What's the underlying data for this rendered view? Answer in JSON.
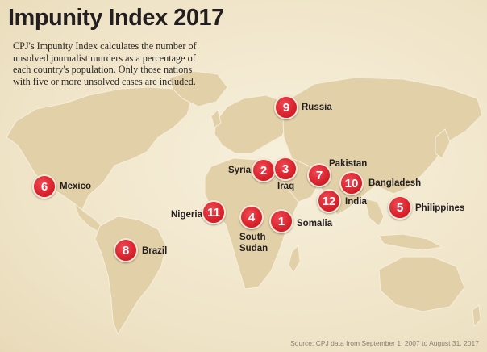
{
  "title": "Impunity Index 2017",
  "intro": "CPJ's Impunity Index calculates the number of unsolved journalist murders as a percentage of each country's population. Only those nations with five or more unsolved cases are included.",
  "source": "Source: CPJ data from September 1, 2007 to August 31, 2017",
  "colors": {
    "background": "#f3ead3",
    "land": "#e2d0a8",
    "marker": "#d8222d",
    "text": "#231f20"
  },
  "countries": [
    {
      "name": "Somalia",
      "rank": "1"
    },
    {
      "name": "Syria",
      "rank": "2"
    },
    {
      "name": "Iraq",
      "rank": "3"
    },
    {
      "name": "South Sudan",
      "rank": "4"
    },
    {
      "name": "Philippines",
      "rank": "5"
    },
    {
      "name": "Mexico",
      "rank": "6"
    },
    {
      "name": "Pakistan",
      "rank": "7"
    },
    {
      "name": "Brazil",
      "rank": "8"
    },
    {
      "name": "Russia",
      "rank": "9"
    },
    {
      "name": "Bangladesh",
      "rank": "10"
    },
    {
      "name": "Nigeria",
      "rank": "11"
    },
    {
      "name": "India",
      "rank": "12"
    }
  ]
}
